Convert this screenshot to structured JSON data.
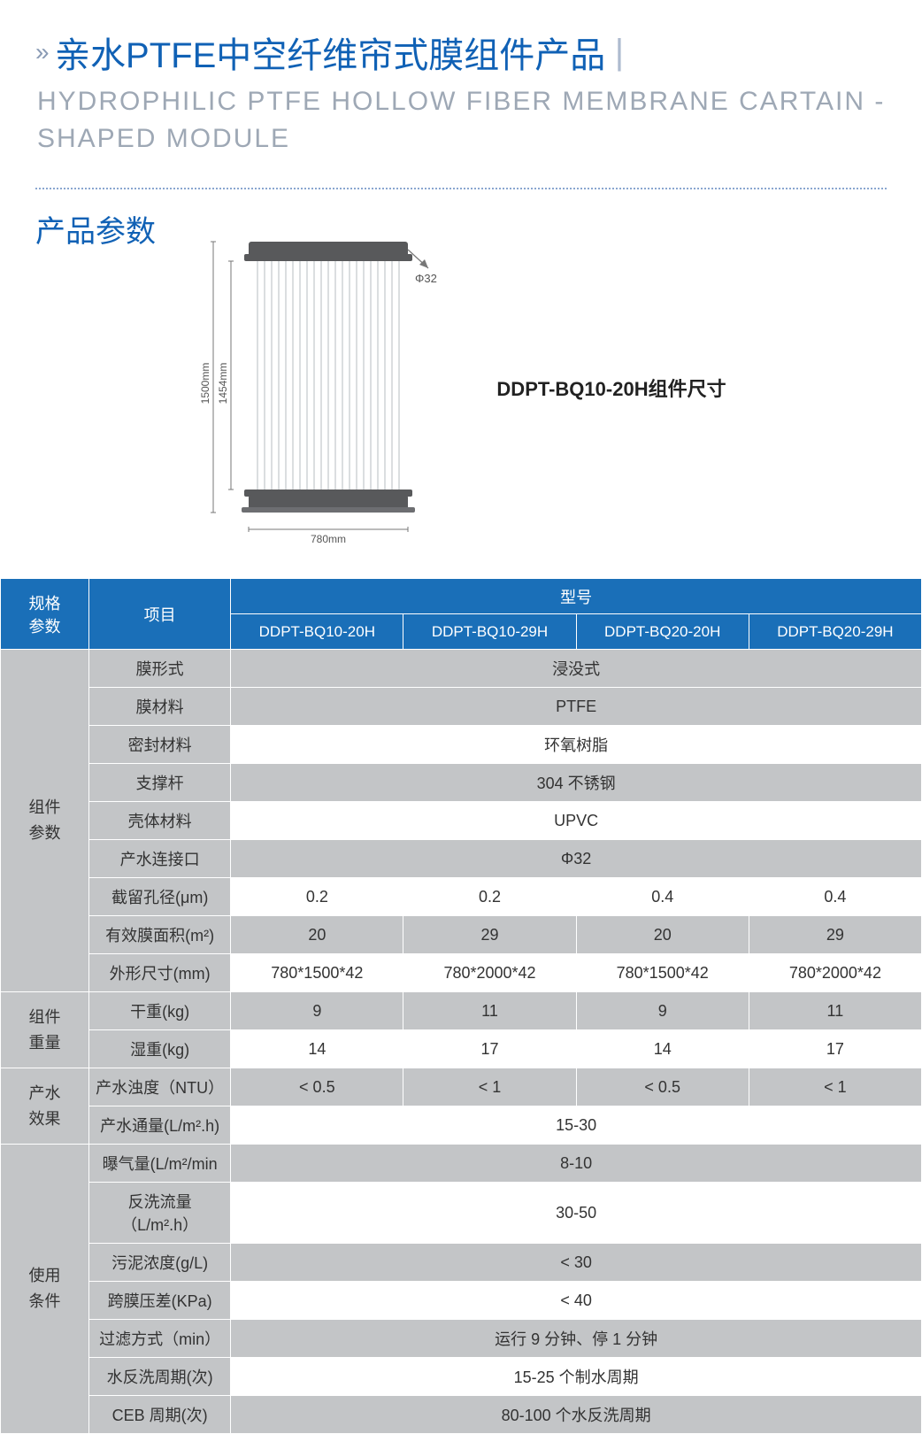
{
  "header": {
    "title_cn": "亲水PTFE中空纤维帘式膜组件产品",
    "title_en": "HYDROPHILIC PTFE HOLLOW FIBER MEMBRANE CARTAIN -SHAPED MODULE"
  },
  "section_title": "产品参数",
  "diagram": {
    "label": "DDPT-BQ10-20H组件尺寸",
    "dim_outer_h": "1500mm",
    "dim_inner_h": "1454mm",
    "dim_w": "780mm",
    "phi": "Φ32",
    "colors": {
      "manifold": "#58595b",
      "fiber": "#9aa0a5",
      "dim_line": "#777",
      "text": "#555"
    }
  },
  "table": {
    "header": {
      "spec": "规格",
      "param": "参数",
      "item": "项目",
      "model": "型号",
      "models": [
        "DDPT-BQ10-20H",
        "DDPT-BQ10-29H",
        "DDPT-BQ20-20H",
        "DDPT-BQ20-29H"
      ]
    },
    "groups": [
      {
        "cat": "组件\n参数",
        "rows": [
          {
            "param": "膜形式",
            "span": "浸没式",
            "shade": true
          },
          {
            "param": "膜材料",
            "span": "PTFE",
            "shade": true
          },
          {
            "param": "密封材料",
            "span": "环氧树脂",
            "shade": false
          },
          {
            "param": "支撑杆",
            "span": "304 不锈钢",
            "shade": true
          },
          {
            "param": "壳体材料",
            "span": "UPVC",
            "shade": false
          },
          {
            "param": "产水连接口",
            "span": "Φ32",
            "shade": true
          },
          {
            "param": "截留孔径(μm)",
            "vals": [
              "0.2",
              "0.2",
              "0.4",
              "0.4"
            ],
            "shade": false
          },
          {
            "param": "有效膜面积(m²)",
            "vals": [
              "20",
              "29",
              "20",
              "29"
            ],
            "shade": true
          },
          {
            "param": "外形尺寸(mm)",
            "vals": [
              "780*1500*42",
              "780*2000*42",
              "780*1500*42",
              "780*2000*42"
            ],
            "shade": false
          }
        ]
      },
      {
        "cat": "组件\n重量",
        "rows": [
          {
            "param": "干重(kg)",
            "vals": [
              "9",
              "11",
              "9",
              "11"
            ],
            "shade": true
          },
          {
            "param": "湿重(kg)",
            "vals": [
              "14",
              "17",
              "14",
              "17"
            ],
            "shade": false
          }
        ]
      },
      {
        "cat": "产水\n效果",
        "rows": [
          {
            "param": "产水浊度（NTU）",
            "vals": [
              "< 0.5",
              "< 1",
              "< 0.5",
              "< 1"
            ],
            "shade": true
          },
          {
            "param": "产水通量(L/m².h)",
            "span": "15-30",
            "shade": false
          }
        ]
      },
      {
        "cat": "使用\n条件",
        "rows": [
          {
            "param": "曝气量(L/m²/min",
            "span": "8-10",
            "shade": true
          },
          {
            "param": "反洗流量（L/m².h）",
            "span": "30-50",
            "shade": false
          },
          {
            "param": "污泥浓度(g/L)",
            "span": "< 30",
            "shade": true
          },
          {
            "param": "跨膜压差(KPa)",
            "span": "< 40",
            "shade": false
          },
          {
            "param": "过滤方式（min）",
            "span": "运行 9 分钟、停 1 分钟",
            "shade": true
          },
          {
            "param": "水反洗周期(次)",
            "span": "15-25  个制水周期",
            "shade": false
          },
          {
            "param": "CEB 周期(次)",
            "span": "80-100  个水反洗周期",
            "shade": true
          }
        ]
      }
    ]
  }
}
